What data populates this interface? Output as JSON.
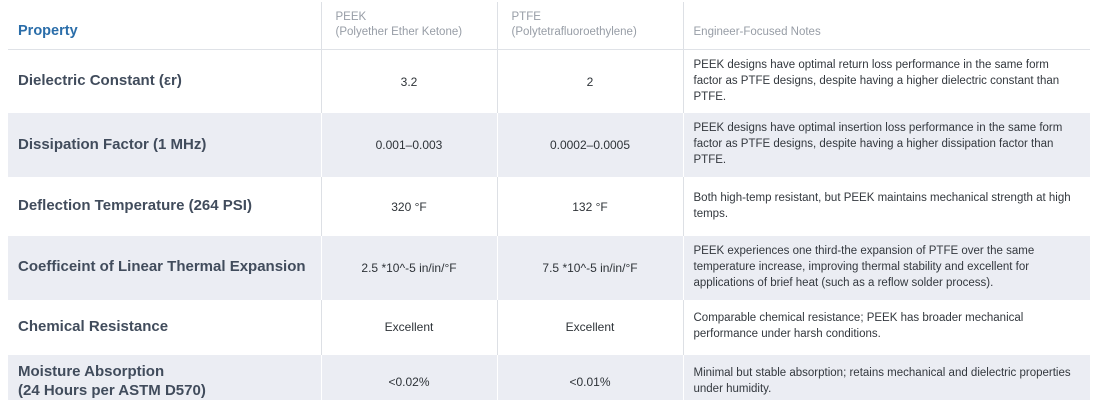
{
  "colors": {
    "accent_blue": "#2A6DA9",
    "stripe_row_bg": "#EBEDF3",
    "grid_line": "#DDE0E5",
    "header_gray_text": "#979DA6",
    "property_text": "#414C5C"
  },
  "table": {
    "headers": {
      "property": "Property",
      "peek": "PEEK\n(Polyether Ether Ketone)",
      "ptfe": "PTFE\n(Polytetrafluoroethylene)",
      "notes": "Engineer-Focused Notes"
    },
    "rows": [
      {
        "property": "Dielectric Constant (εr)",
        "peek": "3.2",
        "ptfe": "2",
        "notes": "PEEK designs have optimal return loss performance in the same form factor as PTFE designs, despite having a higher dielectric constant than PTFE."
      },
      {
        "property": "Dissipation Factor (1 MHz)",
        "peek": "0.001–0.003",
        "ptfe": "0.0002–0.0005",
        "notes": "PEEK designs have optimal insertion loss performance in the same form factor as PTFE designs, despite having a higher dissipation factor than PTFE."
      },
      {
        "property": "Deflection Temperature (264 PSI)",
        "peek": "320 °F",
        "ptfe": "132 °F",
        "notes": "Both high-temp resistant, but PEEK maintains mechanical strength at high temps."
      },
      {
        "property": "Coefficeint of Linear Thermal Expansion",
        "peek": "2.5 *10^-5 in/in/°F",
        "ptfe": "7.5 *10^-5 in/in/°F",
        "notes": "PEEK experiences one third-the expansion of PTFE over the same temperature increase, improving thermal stability and excellent for applications of brief heat (such as a reflow solder process)."
      },
      {
        "property": "Chemical Resistance",
        "peek": "Excellent",
        "ptfe": "Excellent",
        "notes": "Comparable chemical resistance; PEEK has broader mechanical performance under harsh conditions."
      },
      {
        "property": "Moisture Absorption\n(24 Hours per ASTM D570)",
        "peek": "<0.02%",
        "ptfe": "<0.01%",
        "notes": "Minimal but stable absorption; retains mechanical and dielectric properties under humidity."
      }
    ]
  }
}
